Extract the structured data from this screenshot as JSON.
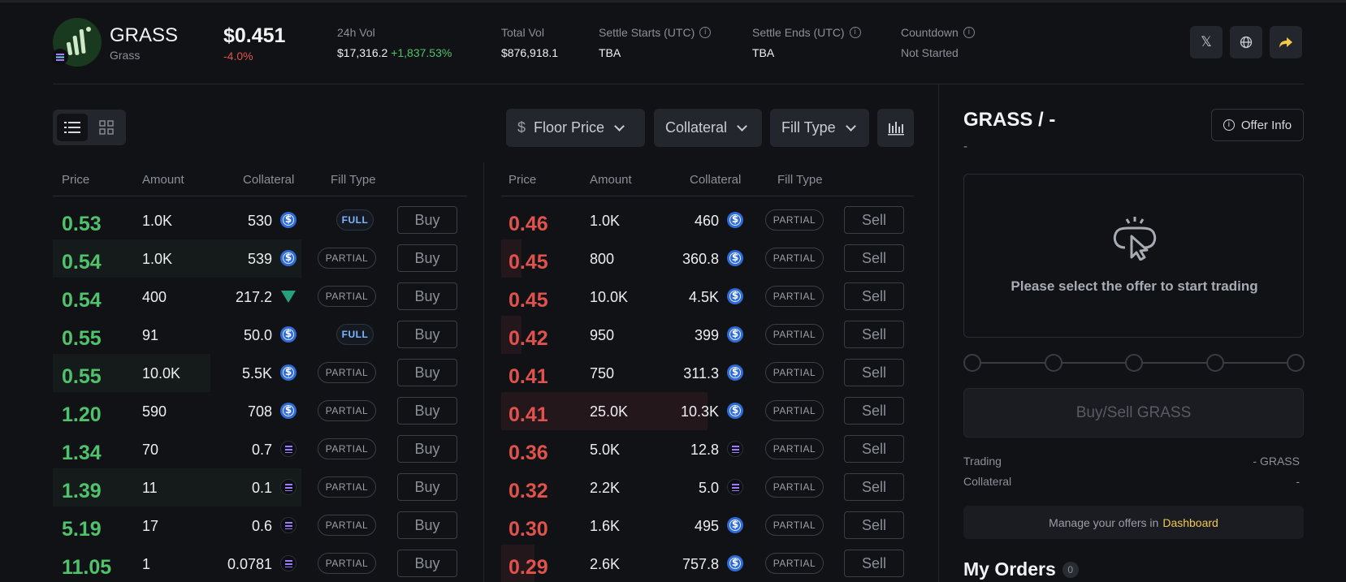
{
  "token": {
    "symbol": "GRASS",
    "name": "Grass",
    "price": "$0.451",
    "change": "-4.0%"
  },
  "stats": {
    "vol24_label": "24h Vol",
    "vol24_value": "$17,316.2",
    "vol24_change": "+1,837.53%",
    "total_vol_label": "Total Vol",
    "total_vol_value": "$876,918.1",
    "settle_start_label": "Settle Starts (UTC)",
    "settle_start_value": "TBA",
    "settle_end_label": "Settle Ends (UTC)",
    "settle_end_value": "TBA",
    "countdown_label": "Countdown",
    "countdown_value": "Not Started"
  },
  "header_buttons": {
    "x_icon": "x-icon",
    "web_icon": "globe-icon",
    "share_icon": "share-icon"
  },
  "filters": {
    "floor_price": "Floor Price",
    "collateral": "Collateral",
    "fill_type": "Fill Type",
    "dollar": "$"
  },
  "columns": {
    "price": "Price",
    "amount": "Amount",
    "collateral": "Collateral",
    "fill_type": "Fill Type"
  },
  "buy_orders": [
    {
      "price": "0.53",
      "amount": "1.0K",
      "collateral": "530",
      "coin": "usdc",
      "fill": "FULL",
      "action": "Buy",
      "depth": 0
    },
    {
      "price": "0.54",
      "amount": "1.0K",
      "collateral": "539",
      "coin": "usdc",
      "fill": "PARTIAL",
      "action": "Buy",
      "depth": 0.6
    },
    {
      "price": "0.54",
      "amount": "400",
      "collateral": "217.2",
      "coin": "usdt",
      "fill": "PARTIAL",
      "action": "Buy",
      "depth": 0
    },
    {
      "price": "0.55",
      "amount": "91",
      "collateral": "50.0",
      "coin": "usdc",
      "fill": "FULL",
      "action": "Buy",
      "depth": 0
    },
    {
      "price": "0.55",
      "amount": "10.0K",
      "collateral": "5.5K",
      "coin": "usdc",
      "fill": "PARTIAL",
      "action": "Buy",
      "depth": 0.38
    },
    {
      "price": "1.20",
      "amount": "590",
      "collateral": "708",
      "coin": "usdc",
      "fill": "PARTIAL",
      "action": "Buy",
      "depth": 0
    },
    {
      "price": "1.34",
      "amount": "70",
      "collateral": "0.7",
      "coin": "sol",
      "fill": "PARTIAL",
      "action": "Buy",
      "depth": 0
    },
    {
      "price": "1.39",
      "amount": "11",
      "collateral": "0.1",
      "coin": "sol",
      "fill": "PARTIAL",
      "action": "Buy",
      "depth": 0.6
    },
    {
      "price": "5.19",
      "amount": "17",
      "collateral": "0.6",
      "coin": "sol",
      "fill": "PARTIAL",
      "action": "Buy",
      "depth": 0
    },
    {
      "price": "11.05",
      "amount": "1",
      "collateral": "0.0781",
      "coin": "sol",
      "fill": "PARTIAL",
      "action": "Buy",
      "depth": 0
    }
  ],
  "sell_orders": [
    {
      "price": "0.46",
      "amount": "1.0K",
      "collateral": "460",
      "coin": "usdc",
      "fill": "PARTIAL",
      "action": "Sell",
      "depth": 0
    },
    {
      "price": "0.45",
      "amount": "800",
      "collateral": "360.8",
      "coin": "usdc",
      "fill": "PARTIAL",
      "action": "Sell",
      "depth": 0.05
    },
    {
      "price": "0.45",
      "amount": "10.0K",
      "collateral": "4.5K",
      "coin": "usdc",
      "fill": "PARTIAL",
      "action": "Sell",
      "depth": 0
    },
    {
      "price": "0.42",
      "amount": "950",
      "collateral": "399",
      "coin": "usdc",
      "fill": "PARTIAL",
      "action": "Sell",
      "depth": 0.05
    },
    {
      "price": "0.41",
      "amount": "750",
      "collateral": "311.3",
      "coin": "usdc",
      "fill": "PARTIAL",
      "action": "Sell",
      "depth": 0
    },
    {
      "price": "0.41",
      "amount": "25.0K",
      "collateral": "10.3K",
      "coin": "usdc",
      "fill": "PARTIAL",
      "action": "Sell",
      "depth": 0.5
    },
    {
      "price": "0.36",
      "amount": "5.0K",
      "collateral": "12.8",
      "coin": "sol",
      "fill": "PARTIAL",
      "action": "Sell",
      "depth": 0
    },
    {
      "price": "0.32",
      "amount": "2.2K",
      "collateral": "5.0",
      "coin": "sol",
      "fill": "PARTIAL",
      "action": "Sell",
      "depth": 0
    },
    {
      "price": "0.30",
      "amount": "1.6K",
      "collateral": "495",
      "coin": "usdc",
      "fill": "PARTIAL",
      "action": "Sell",
      "depth": 0
    },
    {
      "price": "0.29",
      "amount": "2.6K",
      "collateral": "757.8",
      "coin": "usdc",
      "fill": "PARTIAL",
      "action": "Sell",
      "depth": 0.08
    }
  ],
  "panel": {
    "pair": "GRASS / -",
    "pair_sub": "-",
    "offer_info": "Offer Info",
    "empty_text": "Please select the offer to start trading",
    "trade_button": "Buy/Sell GRASS",
    "trading_label": "Trading",
    "trading_value": "- GRASS",
    "collateral_label": "Collateral",
    "collateral_value": "-",
    "manage_text": "Manage your offers in",
    "manage_link": "Dashboard",
    "my_orders": "My Orders",
    "my_orders_count": "0"
  },
  "colors": {
    "buy": "#4fc26b",
    "sell": "#e0524b",
    "accent": "#f2c94c",
    "background": "#111216"
  }
}
